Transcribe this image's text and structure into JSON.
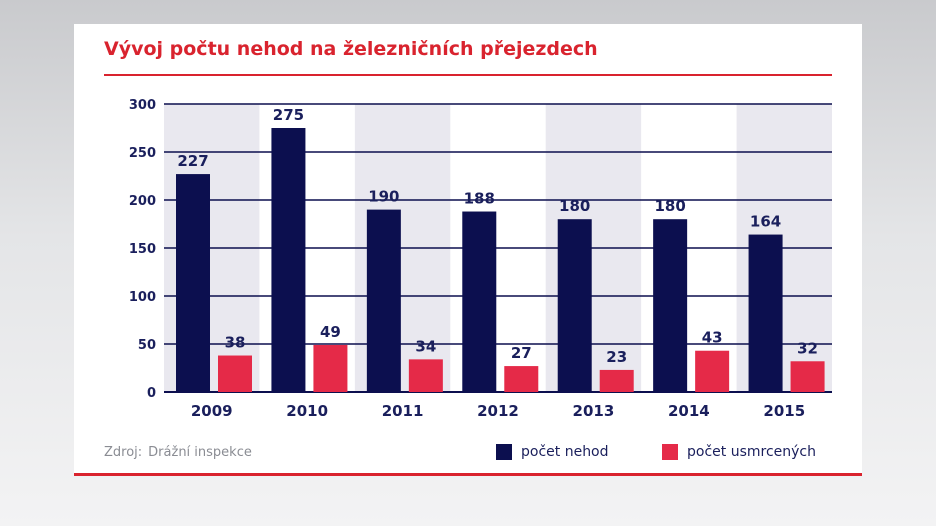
{
  "chart_data": {
    "type": "bar",
    "title": "Vývoj počtu nehod na železničních přejezdech",
    "categories": [
      "2009",
      "2010",
      "2011",
      "2012",
      "2013",
      "2014",
      "2015"
    ],
    "series": [
      {
        "name": "počet nehod",
        "color": "#0c0f4f",
        "values": [
          227,
          275,
          190,
          188,
          180,
          180,
          164
        ]
      },
      {
        "name": "počet usmrcených",
        "color": "#e52a48",
        "values": [
          38,
          49,
          34,
          27,
          23,
          43,
          32
        ]
      }
    ],
    "yticks": [
      0,
      50,
      100,
      150,
      200,
      250,
      300
    ],
    "ylim": [
      0,
      300
    ],
    "grid": true,
    "legend": "bottom-right",
    "source_label": "Zdroj:",
    "source_value": "Drážní inspekce",
    "colors": {
      "accent": "#d9232e",
      "band": "#e9e8ef",
      "grid": "#0c0f4f",
      "text": "#1a1f5c"
    }
  }
}
